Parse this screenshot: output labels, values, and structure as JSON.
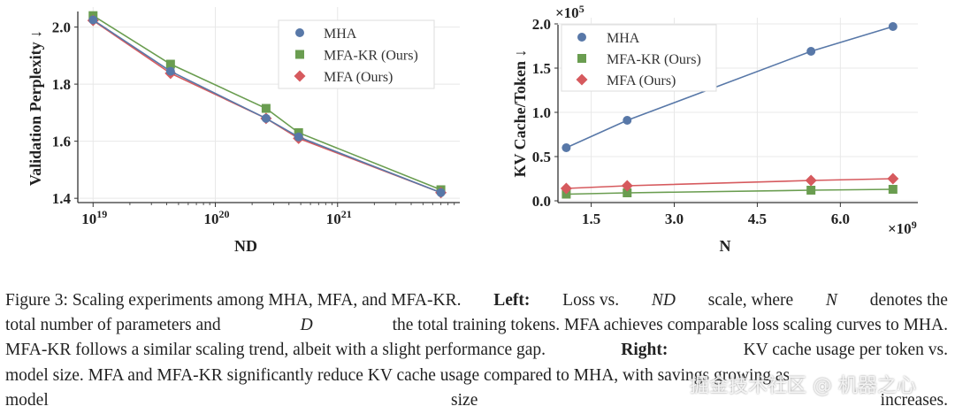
{
  "colors": {
    "MHA": "#5878a8",
    "MFA-KR (Ours)": "#6a9d50",
    "MFA (Ours)": "#d65a5e"
  },
  "chart_data": [
    {
      "type": "line",
      "title": "",
      "xlabel": "ND",
      "ylabel": "Validation Perplexity ↓",
      "xscale": "log",
      "xlim": [
        7.5e+18,
        1e+22
      ],
      "ylim": [
        1.385,
        2.07
      ],
      "xticks": [
        {
          "v": 1e+19,
          "base": "10",
          "exp": "19"
        },
        {
          "v": 1e+20,
          "base": "10",
          "exp": "20"
        },
        {
          "v": 1e+21,
          "base": "10",
          "exp": "21"
        }
      ],
      "yticks": [
        "1.4",
        "1.6",
        "1.8",
        "2.0"
      ],
      "legend": "top-right",
      "grid": true,
      "series": [
        {
          "name": "MHA",
          "marker": "circle",
          "x": [
            1e+19,
            4.3e+19,
            2.6e+20,
            4.8e+20,
            7e+21
          ],
          "y": [
            2.025,
            1.845,
            1.68,
            1.615,
            1.42
          ]
        },
        {
          "name": "MFA-KR (Ours)",
          "marker": "square",
          "x": [
            1e+19,
            4.3e+19,
            2.6e+20,
            4.8e+20,
            7e+21
          ],
          "y": [
            2.04,
            1.87,
            1.715,
            1.63,
            1.43
          ]
        },
        {
          "name": "MFA (Ours)",
          "marker": "diamond",
          "x": [
            1e+19,
            4.3e+19,
            2.6e+20,
            4.8e+20,
            7e+21
          ],
          "y": [
            2.023,
            1.838,
            1.68,
            1.61,
            1.42
          ]
        }
      ]
    },
    {
      "type": "line",
      "title": "",
      "xlabel": "N",
      "ylabel": "KV Cache/Token ↓",
      "x_multiplier": "×10",
      "x_multiplier_exp": "9",
      "y_multiplier": "×10",
      "y_multiplier_exp": "5",
      "xlim": [
        0.9,
        7.4
      ],
      "ylim": [
        -0.02,
        2.07
      ],
      "xticks": [
        "1.5",
        "3.0",
        "4.5",
        "6.0"
      ],
      "yticks": [
        "0.0",
        "0.5",
        "1.0",
        "1.5",
        "2.0"
      ],
      "legend": "top-left",
      "grid": true,
      "series": [
        {
          "name": "MHA",
          "marker": "circle",
          "x": [
            1.05,
            2.15,
            5.47,
            6.95
          ],
          "y": [
            0.6,
            0.91,
            1.69,
            1.97
          ]
        },
        {
          "name": "MFA-KR (Ours)",
          "marker": "square",
          "x": [
            1.05,
            2.15,
            5.47,
            6.95
          ],
          "y": [
            0.075,
            0.09,
            0.12,
            0.13
          ]
        },
        {
          "name": "MFA (Ours)",
          "marker": "diamond",
          "x": [
            1.05,
            2.15,
            5.47,
            6.95
          ],
          "y": [
            0.14,
            0.17,
            0.23,
            0.25
          ]
        }
      ]
    }
  ],
  "caption": [
    [
      {
        "t": "Figure 3: Scaling experiments among MHA, MFA, and MFA-KR."
      },
      {
        "t": "Left:",
        "s": "b"
      },
      {
        "t": "Loss vs."
      },
      {
        "t": "ND",
        "s": "i"
      },
      {
        "t": "scale, where"
      },
      {
        "t": "N",
        "s": "i"
      },
      {
        "t": "denotes the"
      }
    ],
    [
      {
        "t": "total number of parameters and"
      },
      {
        "t": "D",
        "s": "i"
      },
      {
        "t": "the total training tokens. MFA achieves comparable loss scaling curves to MHA."
      }
    ],
    [
      {
        "t": "MFA-KR follows a similar scaling trend, albeit with a slight performance gap."
      },
      {
        "t": "Right:",
        "s": "b"
      },
      {
        "t": "KV cache usage per token vs."
      }
    ],
    [
      {
        "t": "model size. MFA and MFA-KR significantly reduce KV cache usage compared to MHA, with savings growing as"
      }
    ],
    [
      {
        "t": "model size increases."
      }
    ]
  ],
  "watermark": "掘金技术社区 @ 机器之心"
}
